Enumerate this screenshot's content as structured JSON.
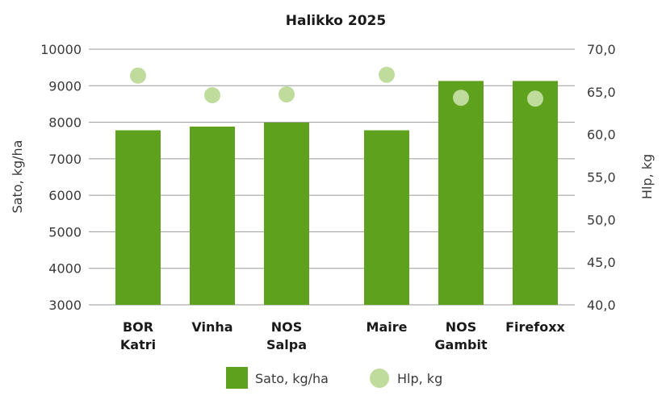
{
  "chart_data": {
    "type": "bar",
    "title": "Halikko 2025",
    "categories": [
      [
        "BOR",
        "Katri"
      ],
      [
        "Vinha"
      ],
      [
        "NOS",
        "Salpa"
      ],
      [
        "Maire"
      ],
      [
        "NOS",
        "Gambit"
      ],
      [
        "Firefoxx"
      ]
    ],
    "series": [
      {
        "name": "Sato, kg/ha",
        "type": "bar",
        "axis": "left",
        "color": "#5ea11d",
        "values": [
          7780,
          7880,
          7990,
          7780,
          9130,
          9130
        ]
      },
      {
        "name": "Hlp, kg",
        "type": "scatter",
        "axis": "right",
        "color": "#bfdc9c",
        "values": [
          66.9,
          64.6,
          64.7,
          67.0,
          64.3,
          64.2
        ]
      }
    ],
    "ylabel": "Sato, kg/ha",
    "ylim": [
      3000,
      10000
    ],
    "yticks": [
      "3000",
      "4000",
      "5000",
      "6000",
      "7000",
      "8000",
      "9000",
      "10000"
    ],
    "y2label": "Hlp, kg",
    "y2lim": [
      40,
      70
    ],
    "y2ticks": [
      "40,0",
      "45,0",
      "50,0",
      "55,0",
      "60,0",
      "65,0",
      "70,0"
    ],
    "grid": true,
    "legend_position": "bottom-center"
  }
}
